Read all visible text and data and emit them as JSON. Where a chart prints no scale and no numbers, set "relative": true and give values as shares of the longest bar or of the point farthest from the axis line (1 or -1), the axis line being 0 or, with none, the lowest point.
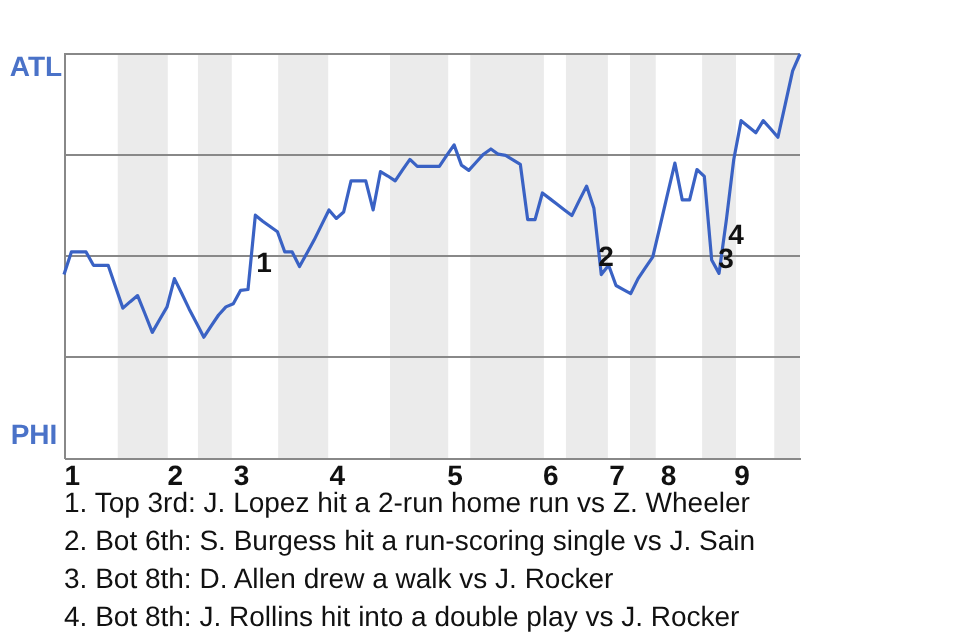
{
  "chart_data": {
    "type": "line",
    "relative": true,
    "categories": [
      null,
      "1",
      null,
      null,
      null,
      null,
      null,
      null,
      null,
      null,
      null,
      null,
      null,
      null,
      null,
      "2",
      null,
      null,
      null,
      null,
      null,
      null,
      null,
      null,
      "3",
      null,
      null,
      null,
      null,
      null,
      null,
      null,
      null,
      null,
      null,
      null,
      null,
      "4",
      null,
      null,
      null,
      null,
      null,
      null,
      null,
      null,
      null,
      null,
      null,
      null,
      null,
      null,
      null,
      "5",
      null,
      null,
      null,
      null,
      null,
      null,
      null,
      null,
      null,
      null,
      null,
      null,
      "6",
      null,
      null,
      null,
      null,
      null,
      null,
      null,
      null,
      "7",
      null,
      null,
      null,
      null,
      null,
      null,
      "8",
      null,
      null,
      null,
      null,
      null,
      null,
      null,
      null,
      null,
      "9",
      null,
      null,
      null,
      null,
      null,
      null,
      null,
      null
    ],
    "series": [
      {
        "color": "#3a62c4",
        "values": [
          0.454,
          0.51,
          0.51,
          0.51,
          0.477,
          0.477,
          0.477,
          0.424,
          0.371,
          0.387,
          0.402,
          0.357,
          0.311,
          0.343,
          0.374,
          0.444,
          0.407,
          0.369,
          0.334,
          0.299,
          0.327,
          0.354,
          0.374,
          0.382,
          0.415,
          0.417,
          0.601,
          0.586,
          0.573,
          0.56,
          0.51,
          0.51,
          0.474,
          0.507,
          0.54,
          0.577,
          0.614,
          0.593,
          0.609,
          0.686,
          0.686,
          0.686,
          0.614,
          0.709,
          0.698,
          0.686,
          0.713,
          0.739,
          0.722,
          0.722,
          0.722,
          0.722,
          0.749,
          0.775,
          0.725,
          0.712,
          0.732,
          0.752,
          0.765,
          0.752,
          0.749,
          0.738,
          0.727,
          0.59,
          0.59,
          0.656,
          0.642,
          0.628,
          0.614,
          0.6,
          0.637,
          0.673,
          0.618,
          0.454,
          0.477,
          0.427,
          0.417,
          0.407,
          0.444,
          0.471,
          0.498,
          0.575,
          0.653,
          0.73,
          0.639,
          0.639,
          0.714,
          0.697,
          0.49,
          0.457,
          0.59,
          0.739,
          0.835,
          0.82,
          0.805,
          0.835,
          0.815,
          0.794,
          0.876,
          0.958,
          1
        ]
      }
    ],
    "ref_lines": [
      {
        "axis": "y",
        "value": 0.25,
        "color": "#888888"
      },
      {
        "axis": "y",
        "value": 0.5,
        "color": "#888888"
      },
      {
        "axis": "y",
        "value": 0.75,
        "color": "#888888"
      },
      {
        "axis": "y",
        "value": 1,
        "color": "#888888"
      }
    ],
    "annotations": [
      "ATL",
      "PHI",
      "1",
      "2",
      "3",
      "4",
      "1. Top 3rd: J. Lopez hit a 2-run home run vs Z. Wheeler",
      "2. Bot 6th: S. Burgess hit a run-scoring single vs J. Sain",
      "3. Bot 8th: D. Allen drew a walk vs J. Rocker",
      "4. Bot 8th: J. Rollins hit into a double play vs J. Rocker"
    ]
  }
}
